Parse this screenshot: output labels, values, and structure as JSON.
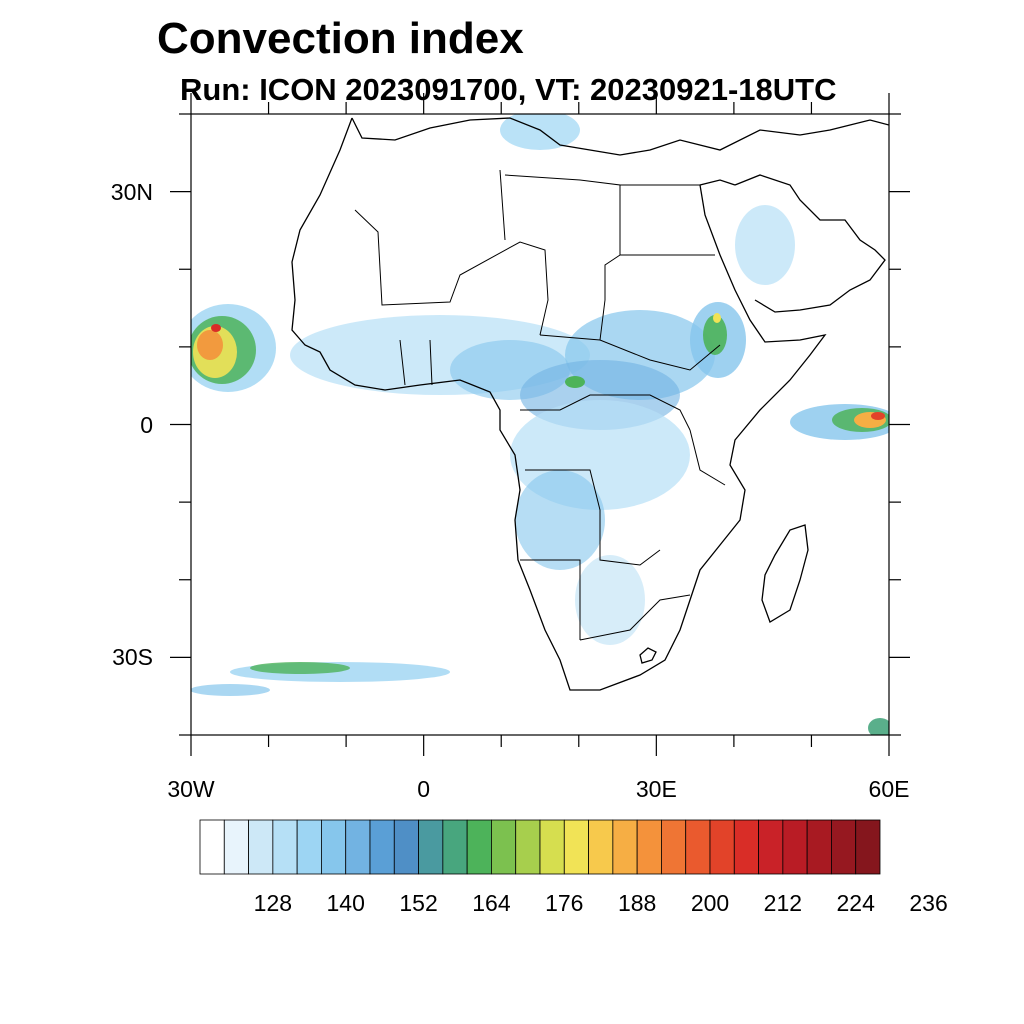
{
  "title": "Convection index",
  "subtitle": "Run: ICON 2023091700,  VT: 20230921-18UTC",
  "map": {
    "extent": {
      "lon": [
        -30,
        60
      ],
      "lat": [
        -40,
        40
      ]
    },
    "y_ticks": [
      {
        "lat": 30,
        "label": "30N"
      },
      {
        "lat": 0,
        "label": "0"
      },
      {
        "lat": -30,
        "label": "30S"
      }
    ],
    "x_ticks": [
      {
        "lon": -30,
        "label": "30W"
      },
      {
        "lon": 0,
        "label": "0"
      },
      {
        "lon": 30,
        "label": "30E"
      },
      {
        "lon": 60,
        "label": "60E"
      }
    ],
    "coastline_color": "#000000",
    "field": "Convection index"
  },
  "colorbar": {
    "colors": [
      "#ffffff",
      "#e8f4fc",
      "#cde8f7",
      "#b6e0f6",
      "#9dd5f3",
      "#86c6ec",
      "#72b3e2",
      "#5a9fd6",
      "#4f8fc6",
      "#4a9aa0",
      "#48a67e",
      "#4db35a",
      "#7cc14f",
      "#a7cf4d",
      "#d6de4f",
      "#f1e356",
      "#f7c94c",
      "#f6ae44",
      "#f4923b",
      "#ef7534",
      "#ea5a2e",
      "#e24329",
      "#d92d27",
      "#c92228",
      "#b91c25",
      "#a81a22",
      "#961820",
      "#85161d"
    ],
    "labels": [
      "128",
      "140",
      "152",
      "164",
      "176",
      "188",
      "200",
      "212",
      "224",
      "236"
    ]
  }
}
